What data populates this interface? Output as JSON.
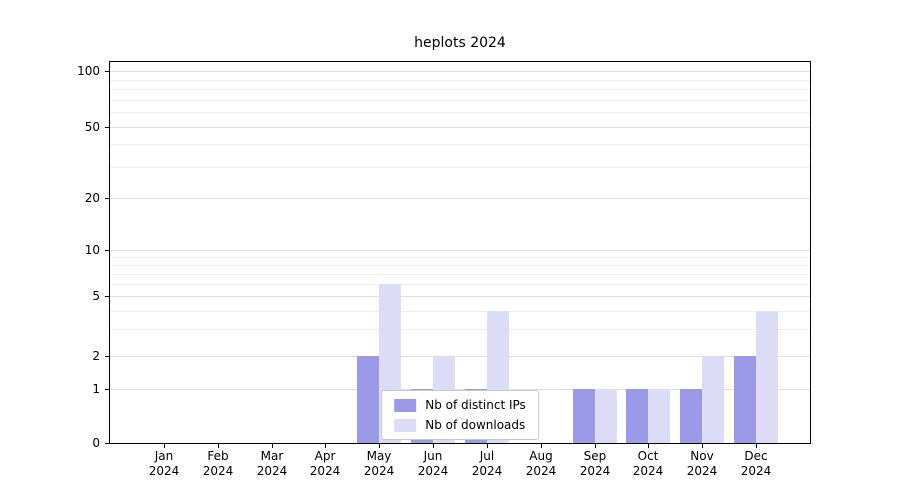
{
  "title": "heplots 2024",
  "x_axis": {
    "months": [
      "Jan",
      "Feb",
      "Mar",
      "Apr",
      "May",
      "Jun",
      "Jul",
      "Aug",
      "Sep",
      "Oct",
      "Nov",
      "Dec"
    ],
    "year": "2024"
  },
  "y_axis": {
    "tick_labels": [
      "0",
      "1",
      "2",
      "5",
      "10",
      "20",
      "50",
      "100"
    ]
  },
  "legend": {
    "items": [
      {
        "label": "Nb of distinct IPs",
        "color": "#9a9ae9"
      },
      {
        "label": "Nb of downloads",
        "color": "#dcdcf8"
      }
    ]
  },
  "colors": {
    "grid_major": "#dedede",
    "grid_minor": "#eeeeee",
    "axis": "#000000",
    "background": "#ffffff"
  },
  "chart_data": {
    "type": "bar",
    "title": "heplots 2024",
    "categories": [
      "Jan 2024",
      "Feb 2024",
      "Mar 2024",
      "Apr 2024",
      "May 2024",
      "Jun 2024",
      "Jul 2024",
      "Aug 2024",
      "Sep 2024",
      "Oct 2024",
      "Nov 2024",
      "Dec 2024"
    ],
    "series": [
      {
        "name": "Nb of distinct IPs",
        "color": "#9a9ae9",
        "values": [
          0,
          0,
          0,
          0,
          2,
          1,
          1,
          0,
          1,
          1,
          1,
          2
        ]
      },
      {
        "name": "Nb of downloads",
        "color": "#dcdcf8",
        "values": [
          0,
          0,
          0,
          0,
          6,
          2,
          4,
          0,
          1,
          1,
          2,
          4
        ]
      }
    ],
    "xlabel": "",
    "ylabel": "",
    "y_scale": "log-like",
    "y_ticks": [
      0,
      1,
      2,
      5,
      10,
      20,
      50,
      100
    ],
    "y_minor_ticks": [
      3,
      4,
      6,
      7,
      8,
      9,
      30,
      40,
      60,
      70,
      80,
      90
    ],
    "ylim": [
      0,
      100
    ],
    "grid": true,
    "legend_position": "inside-bottom-center"
  }
}
